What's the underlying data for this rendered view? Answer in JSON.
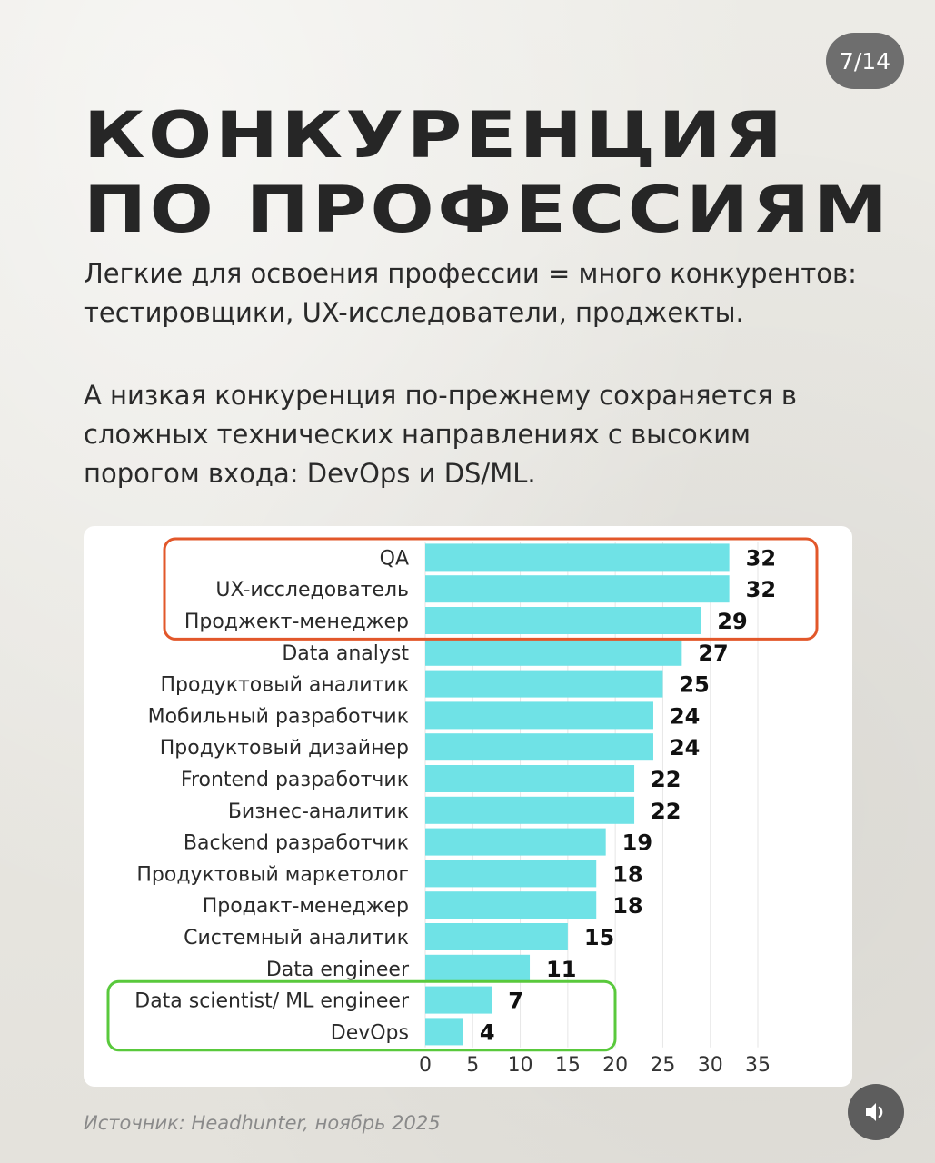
{
  "page_counter": "7/14",
  "title_lines": [
    "КОНКУРЕНЦИЯ",
    "ПО ПРОФЕССИЯМ"
  ],
  "paragraph1_lines": [
    "Легкие для освоения профессии = много конкурентов:",
    "тестировщики, UX-исследователи, проджекты."
  ],
  "paragraph2_lines": [
    "А низкая конкуренция по-прежнему сохраняется в",
    "сложных технических направлениях с высоким",
    "порогом входа: DevOps и DS/ML."
  ],
  "source": "Источник: Headhunter, ноябрь 2025",
  "colors": {
    "bar": "#6fe2e6",
    "highlight_top": "#e2572a",
    "highlight_bottom": "#59c93c"
  },
  "chart_data": {
    "type": "bar",
    "orientation": "horizontal",
    "categories": [
      "QA",
      "UX-исследователь",
      "Проджект-менеджер",
      "Data analyst",
      "Продуктовый аналитик",
      "Мобильный разработчик",
      "Продуктовый дизайнер",
      "Frontend разработчик",
      "Бизнес-аналитик",
      "Backend разработчик",
      "Продуктовый маркетолог",
      "Продакт-менеджер",
      "Системный аналитик",
      "Data engineer",
      "Data scientist/ ML engineer",
      "DevOps"
    ],
    "values": [
      32,
      32,
      29,
      27,
      25,
      24,
      24,
      22,
      22,
      19,
      18,
      18,
      15,
      11,
      7,
      4
    ],
    "x_ticks": [
      "0",
      "5",
      "10",
      "15",
      "20",
      "25",
      "30",
      "35"
    ],
    "xlim": [
      0,
      35
    ],
    "grid": "vertical",
    "highlight_groups": [
      {
        "categories": [
          "QA",
          "UX-исследователь",
          "Проджект-менеджер"
        ],
        "color": "#e2572a"
      },
      {
        "categories": [
          "Data scientist/ ML engineer",
          "DevOps"
        ],
        "color": "#59c93c"
      }
    ]
  }
}
